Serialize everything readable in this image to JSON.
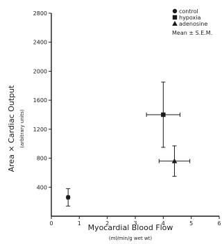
{
  "chart_data": {
    "type": "scatter",
    "title": "",
    "xlabel": "Myocardial Blood Flow",
    "xlabel_units": "(ml/min/g wet wt)",
    "ylabel": "Area × Cardiac Output",
    "ylabel_units": "(arbitrary units)",
    "xlim": [
      0,
      6
    ],
    "ylim": [
      0,
      2800
    ],
    "x_ticks": [
      0,
      1,
      2,
      3,
      4,
      5,
      6
    ],
    "y_ticks": [
      400,
      800,
      1200,
      1600,
      2000,
      2400,
      2800
    ],
    "grid": false,
    "legend_position": "top-right",
    "legend_note": "Mean ± S.E.M.",
    "series": [
      {
        "name": "control",
        "marker": "circle",
        "points": [
          {
            "x": 0.6,
            "y": 260,
            "xerr": 0.05,
            "yerr": 120
          }
        ]
      },
      {
        "name": "hypoxia",
        "marker": "square",
        "points": [
          {
            "x": 4.0,
            "y": 1400,
            "xerr": 0.6,
            "yerr": 450
          }
        ]
      },
      {
        "name": "adenosine",
        "marker": "triangle",
        "points": [
          {
            "x": 4.4,
            "y": 760,
            "xerr": 0.55,
            "yerr": 210
          }
        ]
      }
    ]
  }
}
